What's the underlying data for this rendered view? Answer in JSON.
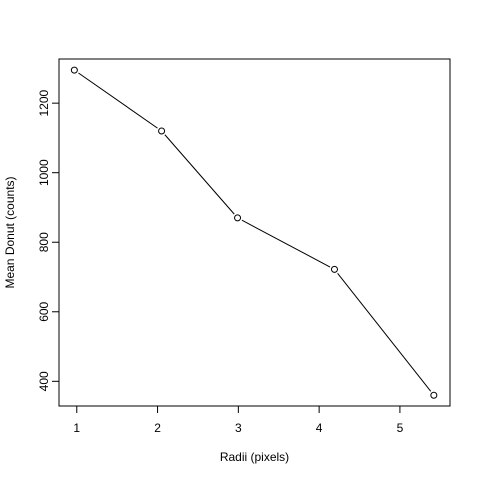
{
  "chart_data": {
    "type": "line",
    "title": "",
    "xlabel": "Radii (pixels)",
    "ylabel": "Mean Donut (counts)",
    "xlim": [
      0.78,
      5.62
    ],
    "ylim": [
      329,
      1327
    ],
    "x_ticks": [
      "1",
      "2",
      "3",
      "4",
      "5"
    ],
    "y_ticks": [
      "400",
      "600",
      "800",
      "1000",
      "1200"
    ],
    "grid": false,
    "legend": "none",
    "marker": "open-circle",
    "line_color": "#000000",
    "series": [
      {
        "x": [
          0.97,
          2.05,
          2.99,
          4.19,
          5.42
        ],
        "y": [
          1295,
          1120,
          870,
          722,
          360
        ]
      }
    ]
  }
}
